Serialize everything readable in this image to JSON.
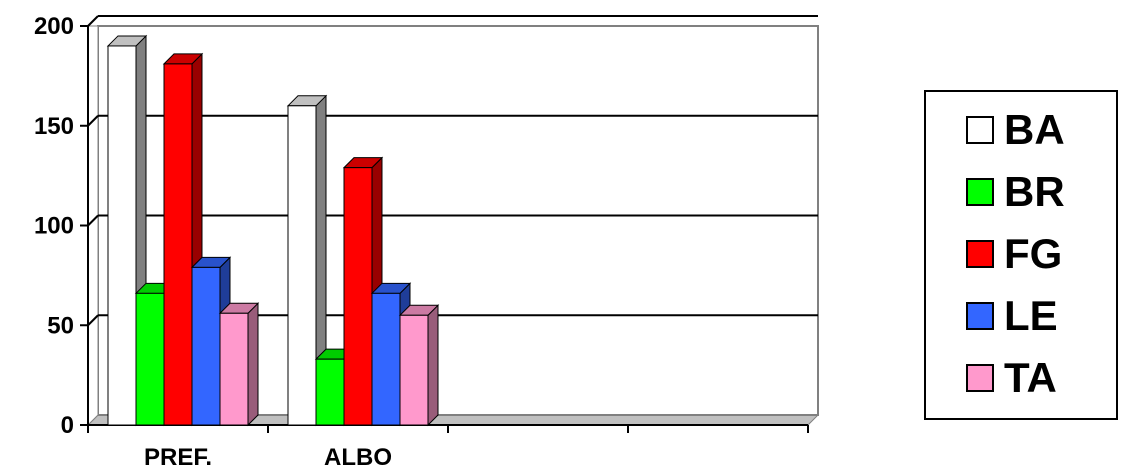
{
  "chart_data": {
    "type": "bar",
    "categories": [
      "PREF.",
      "ALBO"
    ],
    "series": [
      {
        "name": "BA",
        "color": "#ffffff",
        "values": [
          190,
          160
        ]
      },
      {
        "name": "BR",
        "color": "#00ff00",
        "values": [
          66,
          33
        ]
      },
      {
        "name": "FG",
        "color": "#ff0000",
        "values": [
          181,
          129
        ]
      },
      {
        "name": "LE",
        "color": "#3366ff",
        "values": [
          79,
          66
        ]
      },
      {
        "name": "TA",
        "color": "#ff99cc",
        "values": [
          56,
          55
        ]
      }
    ],
    "ylim": [
      0,
      200
    ],
    "yticks": [
      "0",
      "50",
      "100",
      "150",
      "200"
    ],
    "grid": true,
    "legend": "right",
    "style": "3d-bar"
  }
}
